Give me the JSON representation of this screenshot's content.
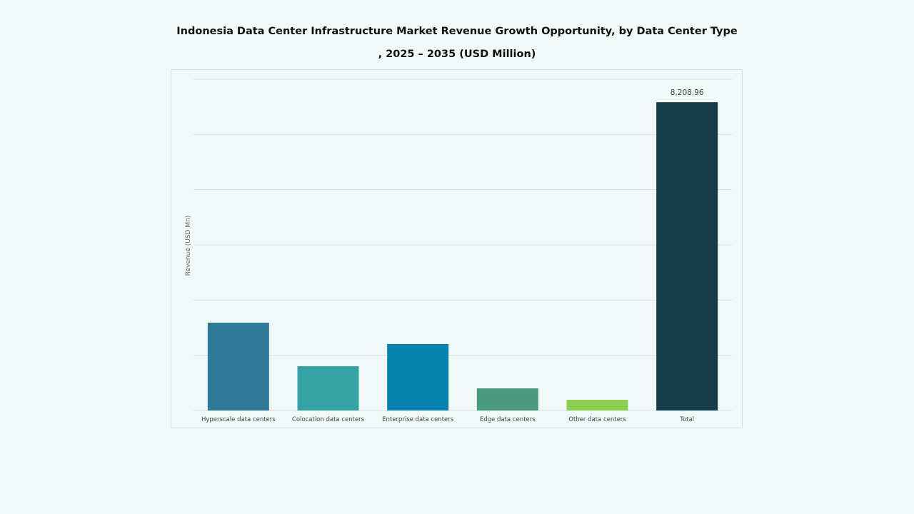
{
  "chart_data": {
    "type": "bar",
    "title": "Indonesia Data Center Infrastructure Market Revenue Growth Opportunity, by Data Center Type",
    "subtitle": ", 2025 – 2035 (USD Million)",
    "xlabel": "",
    "ylabel": "Revenue (USD Mn)",
    "categories": [
      "Hyperscale data centers",
      "Colocation data centers",
      "Enterprise data centers",
      "Edge data centers",
      "Other data centers",
      "Total"
    ],
    "values": [
      2338,
      1178,
      1768,
      589,
      285,
      8208.96
    ],
    "data_labels": [
      "",
      "",
      "",
      "",
      "",
      "8,208.96"
    ],
    "colors": [
      "#307b99",
      "#35a3a3",
      "#0682b1",
      "#4a9a80",
      "#8ccf4f",
      "#173d4a"
    ],
    "ylim": [
      0,
      8820
    ],
    "grid": true,
    "gridline_count": 6,
    "legend": "none"
  }
}
